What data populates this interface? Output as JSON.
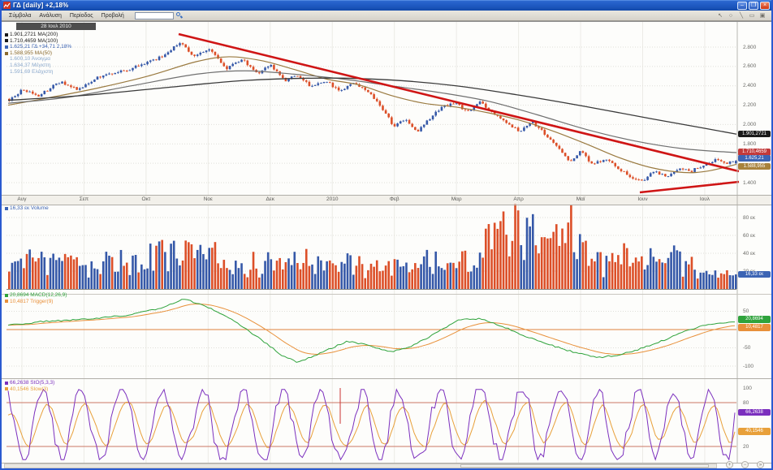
{
  "titlebar": {
    "title": "ΓΔ [daily] +2,18%"
  },
  "menu": {
    "items": [
      "Σύμβολα",
      "Ανάλυση",
      "Περίοδος",
      "Προβολή"
    ],
    "search_value": "",
    "window_buttons": {
      "minimize": "–",
      "restore": "❒",
      "close": "×"
    },
    "tool_icons": [
      "pointer-tool",
      "zoom-tool",
      "trendline-tool",
      "rectangle-tool",
      "save-tool"
    ]
  },
  "main_panel": {
    "date_tooltip": "28 Ιουλ 2010",
    "legend": [
      {
        "label": "1.901,2721 MA(200)",
        "color": "#1a1a1a",
        "bullet": "#1a1a1a"
      },
      {
        "label": "1.710,4659 MA(100)",
        "color": "#1a1a1a",
        "bullet": "#1a1a1a"
      },
      {
        "label": "1.625,21 ΓΔ +34,71 2,18%",
        "color": "#3c64b4",
        "bullet": "#3c64b4"
      },
      {
        "label": "1.588,955 MA(50)",
        "color": "#8a6a2e",
        "bullet": "#8a6a2e"
      },
      {
        "label": "1.600,10 Άνοιγμα",
        "color": "#8aa8cc",
        "bullet": ""
      },
      {
        "label": "1.634,37 Μέγιστη",
        "color": "#8aa8cc",
        "bullet": ""
      },
      {
        "label": "1.591,69 Ελάχιστη",
        "color": "#8aa8cc",
        "bullet": ""
      }
    ],
    "y_ticks": [
      {
        "l": "2.800",
        "v": 2800
      },
      {
        "l": "2.600",
        "v": 2600
      },
      {
        "l": "2.400",
        "v": 2400
      },
      {
        "l": "2.200",
        "v": 2200
      },
      {
        "l": "2.000",
        "v": 2000
      },
      {
        "l": "1.800",
        "v": 1800
      },
      {
        "l": "1.400",
        "v": 1400
      }
    ],
    "grid_values": [
      2800,
      2600,
      2400,
      2200,
      2000,
      1800,
      1600,
      1400
    ],
    "badges": [
      {
        "text": "1.901,2721",
        "value": 1901.27,
        "color": "#1a1a1a"
      },
      {
        "text": "1.710,4659",
        "value": 1710.47,
        "color": "#c23a3a"
      },
      {
        "text": "1.625,21",
        "value": 1625.21,
        "color": "#3c64b4"
      },
      {
        "text": "1.588,955",
        "value": 1588.96,
        "color": "#a8823c"
      }
    ]
  },
  "xaxis": {
    "labels": [
      "Αυγ",
      "Σεπ",
      "Οκτ",
      "Νοε",
      "Δεκ",
      "2010",
      "Φεβ",
      "Μαρ",
      "Απρ",
      "Μαϊ",
      "Ιουν",
      "Ιουλ"
    ]
  },
  "volume_panel": {
    "legend": "16,33 εκ Volume",
    "legend_color": "#3c64b4",
    "y_ticks": [
      {
        "l": "80 εκ",
        "v": 80
      },
      {
        "l": "60 εκ",
        "v": 60
      },
      {
        "l": "40 εκ",
        "v": 40
      },
      {
        "l": "20 εκ",
        "v": 20
      }
    ],
    "badge": {
      "text": "16,33 εκ",
      "value": 16.33,
      "color": "#3c64b4"
    }
  },
  "macd_panel": {
    "legend": [
      {
        "label": "20,8694 MACD(12,26,9)",
        "color": "#2fa33c",
        "bullet": "#2fa33c"
      },
      {
        "label": "10,4817 Trigger(9)",
        "color": "#e8903a",
        "bullet": "#e8903a"
      }
    ],
    "y_ticks": [
      {
        "l": "50",
        "v": 50
      },
      {
        "l": "-50",
        "v": -50
      },
      {
        "l": "-100",
        "v": -100
      }
    ],
    "badges": [
      {
        "text": "20,8694",
        "value": 20.87,
        "color": "#2fa33c"
      },
      {
        "text": "10,4817",
        "value": 10.48,
        "color": "#e8903a"
      }
    ]
  },
  "stoch_panel": {
    "legend": [
      {
        "label": "66,2638 StO(5,3,3)",
        "color": "#7b2fbe",
        "bullet": "#7b2fbe"
      },
      {
        "label": "40,1546 Slow(3)",
        "color": "#e8a03a",
        "bullet": "#e8a03a"
      }
    ],
    "y_ticks": [
      {
        "l": "100",
        "v": 100
      },
      {
        "l": "80",
        "v": 80
      },
      {
        "l": "20",
        "v": 20
      }
    ],
    "levels": [
      80,
      20
    ],
    "badges": [
      {
        "text": "66,2638",
        "value": 66.26,
        "color": "#7b2fbe"
      },
      {
        "text": "40,1546",
        "value": 40.15,
        "color": "#e8a03a"
      }
    ]
  },
  "colors": {
    "up": "#3558a8",
    "down": "#dc4f28",
    "ma200": "#3a3a3a",
    "ma100": "#707070",
    "ma50": "#9a7a40",
    "trend": "#cf1515",
    "macd": "#2fa33c",
    "trigger": "#e8903a",
    "stoch": "#7b2fbe",
    "slow": "#e8a03a",
    "levels": "#cc7766",
    "zero": "#e0813c",
    "grid": "#e0dfda",
    "vgrid": "#ecebe6",
    "axis": "#b8b6b0"
  },
  "chart_data": {
    "type": "candlestick-multi-panel",
    "symbol": "ΓΔ",
    "interval": "daily",
    "last": {
      "open": 1600.1,
      "high": 1634.37,
      "low": 1591.69,
      "close": 1625.21,
      "change": 34.71,
      "change_pct": 2.18
    },
    "panels": [
      {
        "name": "price",
        "type": "candlestick",
        "ylim": [
          1280,
          2960
        ],
        "price_anchors": [
          [
            8,
            2260
          ],
          [
            25,
            2360
          ],
          [
            45,
            2300
          ],
          [
            70,
            2440
          ],
          [
            95,
            2360
          ],
          [
            120,
            2500
          ],
          [
            150,
            2560
          ],
          [
            175,
            2620
          ],
          [
            200,
            2720
          ],
          [
            218,
            2855
          ],
          [
            235,
            2700
          ],
          [
            255,
            2780
          ],
          [
            275,
            2580
          ],
          [
            295,
            2680
          ],
          [
            315,
            2520
          ],
          [
            330,
            2620
          ],
          [
            348,
            2440
          ],
          [
            362,
            2520
          ],
          [
            380,
            2380
          ],
          [
            398,
            2450
          ],
          [
            415,
            2350
          ],
          [
            432,
            2440
          ],
          [
            450,
            2350
          ],
          [
            465,
            2200
          ],
          [
            482,
            1980
          ],
          [
            495,
            2060
          ],
          [
            510,
            1930
          ],
          [
            525,
            2060
          ],
          [
            542,
            2180
          ],
          [
            558,
            2230
          ],
          [
            572,
            2120
          ],
          [
            588,
            2230
          ],
          [
            605,
            2110
          ],
          [
            622,
            2000
          ],
          [
            638,
            1930
          ],
          [
            652,
            2030
          ],
          [
            668,
            1900
          ],
          [
            682,
            1780
          ],
          [
            698,
            1610
          ],
          [
            712,
            1720
          ],
          [
            728,
            1580
          ],
          [
            742,
            1660
          ],
          [
            758,
            1550
          ],
          [
            772,
            1460
          ],
          [
            788,
            1420
          ],
          [
            802,
            1520
          ],
          [
            818,
            1465
          ],
          [
            832,
            1550
          ],
          [
            848,
            1520
          ],
          [
            862,
            1580
          ],
          [
            878,
            1630
          ],
          [
            892,
            1600
          ],
          [
            903,
            1625
          ]
        ],
        "ma200_anchors": [
          [
            8,
            2250
          ],
          [
            100,
            2300
          ],
          [
            200,
            2380
          ],
          [
            300,
            2455
          ],
          [
            400,
            2480
          ],
          [
            480,
            2460
          ],
          [
            560,
            2400
          ],
          [
            640,
            2300
          ],
          [
            720,
            2185
          ],
          [
            800,
            2060
          ],
          [
            860,
            1970
          ],
          [
            905,
            1901
          ]
        ],
        "ma100_anchors": [
          [
            8,
            2220
          ],
          [
            80,
            2280
          ],
          [
            160,
            2400
          ],
          [
            240,
            2520
          ],
          [
            300,
            2555
          ],
          [
            360,
            2520
          ],
          [
            420,
            2470
          ],
          [
            480,
            2400
          ],
          [
            540,
            2330
          ],
          [
            600,
            2240
          ],
          [
            660,
            2100
          ],
          [
            720,
            1950
          ],
          [
            780,
            1830
          ],
          [
            840,
            1750
          ],
          [
            905,
            1710
          ]
        ],
        "ma50_anchors": [
          [
            8,
            2200
          ],
          [
            60,
            2280
          ],
          [
            120,
            2380
          ],
          [
            180,
            2500
          ],
          [
            240,
            2650
          ],
          [
            280,
            2700
          ],
          [
            320,
            2660
          ],
          [
            360,
            2570
          ],
          [
            400,
            2470
          ],
          [
            440,
            2410
          ],
          [
            480,
            2300
          ],
          [
            520,
            2220
          ],
          [
            560,
            2180
          ],
          [
            600,
            2120
          ],
          [
            640,
            2040
          ],
          [
            680,
            1930
          ],
          [
            720,
            1800
          ],
          [
            760,
            1660
          ],
          [
            800,
            1555
          ],
          [
            840,
            1505
          ],
          [
            870,
            1520
          ],
          [
            905,
            1589
          ]
        ],
        "trendlines": [
          [
            218,
            42,
            908,
            211
          ],
          [
            786,
            237,
            908,
            224
          ]
        ]
      },
      {
        "name": "volume",
        "type": "bar",
        "unit": "εκ",
        "ylim": [
          0,
          95
        ],
        "spikes": [
          [
            210,
            54
          ],
          [
            234,
            50
          ],
          [
            256,
            46
          ],
          [
            614,
            76
          ],
          [
            636,
            88
          ],
          [
            650,
            70
          ],
          [
            664,
            58
          ],
          [
            678,
            64
          ],
          [
            700,
            94
          ]
        ],
        "last_value": 16.33
      },
      {
        "name": "macd",
        "type": "line",
        "ylim": [
          -110,
          95
        ],
        "macd_anchors": [
          [
            8,
            12
          ],
          [
            50,
            22
          ],
          [
            100,
            28
          ],
          [
            150,
            38
          ],
          [
            190,
            55
          ],
          [
            225,
            84
          ],
          [
            255,
            60
          ],
          [
            285,
            25
          ],
          [
            315,
            -20
          ],
          [
            345,
            -70
          ],
          [
            365,
            -90
          ],
          [
            395,
            -62
          ],
          [
            425,
            -32
          ],
          [
            450,
            -42
          ],
          [
            478,
            -62
          ],
          [
            505,
            -45
          ],
          [
            535,
            -10
          ],
          [
            565,
            28
          ],
          [
            590,
            30
          ],
          [
            615,
            10
          ],
          [
            645,
            -18
          ],
          [
            675,
            -42
          ],
          [
            705,
            -62
          ],
          [
            735,
            -76
          ],
          [
            760,
            -70
          ],
          [
            785,
            -54
          ],
          [
            810,
            -34
          ],
          [
            835,
            -10
          ],
          [
            862,
            10
          ],
          [
            885,
            18
          ],
          [
            903,
            20.87
          ]
        ],
        "last_macd": 20.8694,
        "last_trigger": 10.4817
      },
      {
        "name": "stochastic",
        "type": "line",
        "ylim": [
          0,
          100
        ],
        "last_fast": 66.2638,
        "last_slow": 40.1546,
        "levels": [
          80,
          20
        ],
        "red_mark_x": 417
      }
    ]
  }
}
